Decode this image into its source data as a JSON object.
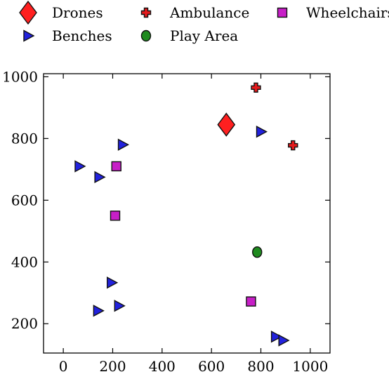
{
  "chart_data": {
    "type": "scatter",
    "title": "",
    "xlabel": "",
    "ylabel": "",
    "xlim": [
      -80,
      1080
    ],
    "ylim": [
      105,
      1010
    ],
    "xticks": [
      0,
      200,
      400,
      600,
      800,
      1000
    ],
    "yticks": [
      200,
      400,
      600,
      800,
      1000
    ],
    "grid": false,
    "legend_position": "top",
    "series": [
      {
        "name": "Drones",
        "marker": "diamond",
        "color": "#ff2020",
        "size": "large",
        "points": [
          [
            660,
            845
          ]
        ]
      },
      {
        "name": "Ambulance",
        "marker": "plus",
        "color": "#e41a1c",
        "size": "small",
        "points": [
          [
            780,
            965
          ],
          [
            930,
            778
          ]
        ]
      },
      {
        "name": "Wheelchairs",
        "marker": "square",
        "color": "#c71fc7",
        "size": "small",
        "points": [
          [
            215,
            710
          ],
          [
            210,
            550
          ],
          [
            760,
            272
          ]
        ]
      },
      {
        "name": "Benches",
        "marker": "triangle-right",
        "color": "#2222dd",
        "size": "small",
        "points": [
          [
            240,
            780
          ],
          [
            800,
            822
          ],
          [
            65,
            710
          ],
          [
            145,
            675
          ],
          [
            195,
            333
          ],
          [
            225,
            258
          ],
          [
            140,
            242
          ],
          [
            860,
            158
          ],
          [
            890,
            146
          ]
        ]
      },
      {
        "name": "Play Area",
        "marker": "circle",
        "color": "#1f8a1f",
        "size": "small",
        "points": [
          [
            785,
            432
          ]
        ]
      }
    ]
  }
}
